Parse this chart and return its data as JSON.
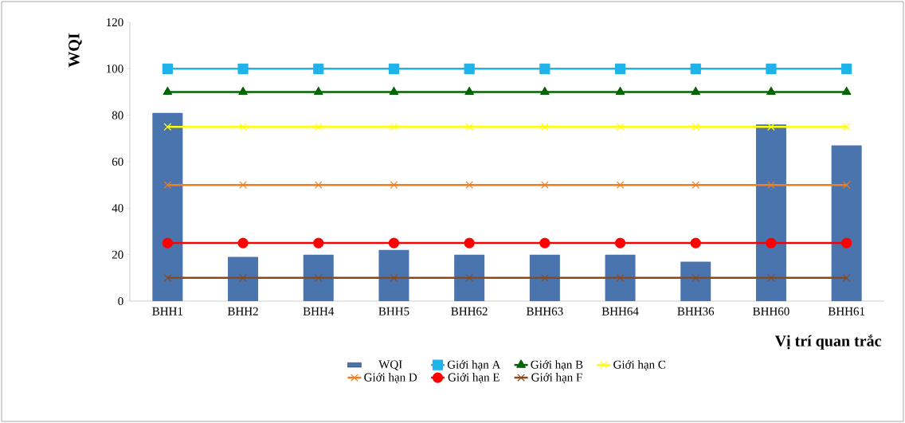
{
  "chart_data": {
    "type": "bar",
    "ylabel": "WQI",
    "xlabel": "Vị trí quan trắc",
    "categories": [
      "BHH1",
      "BHH2",
      "BHH4",
      "BHH5",
      "BHH62",
      "BHH63",
      "BHH64",
      "BHH36",
      "BHH60",
      "BHH61"
    ],
    "ylim": [
      0,
      120
    ],
    "yticks": [
      0,
      20,
      40,
      60,
      80,
      100,
      120
    ],
    "legend": "bottom",
    "grid": false,
    "series": [
      {
        "name": "WQI",
        "color": "#4a74ad",
        "values": [
          81,
          19,
          20,
          22,
          20,
          20,
          20,
          17,
          76,
          67
        ]
      },
      {
        "name": "Giới hạn A",
        "type": "line",
        "color": "#1fb3ea",
        "marker": "square",
        "values": [
          100,
          100,
          100,
          100,
          100,
          100,
          100,
          100,
          100,
          100
        ]
      },
      {
        "name": "Giới hạn B",
        "type": "line",
        "color": "#006400",
        "marker": "triangle",
        "values": [
          90,
          90,
          90,
          90,
          90,
          90,
          90,
          90,
          90,
          90
        ]
      },
      {
        "name": "Giới hạn C",
        "type": "line",
        "color": "#ffff00",
        "marker": "cross",
        "values": [
          75,
          75,
          75,
          75,
          75,
          75,
          75,
          75,
          75,
          75
        ]
      },
      {
        "name": "Giới hạn D",
        "type": "line",
        "color": "#f27d1a",
        "marker": "cross",
        "values": [
          50,
          50,
          50,
          50,
          50,
          50,
          50,
          50,
          50,
          50
        ]
      },
      {
        "name": "Giới hạn E",
        "type": "line",
        "color": "#ff0000",
        "marker": "circle",
        "values": [
          25,
          25,
          25,
          25,
          25,
          25,
          25,
          25,
          25,
          25
        ]
      },
      {
        "name": "Giới hạn F",
        "type": "line",
        "color": "#8b4a1c",
        "marker": "cross",
        "values": [
          10,
          10,
          10,
          10,
          10,
          10,
          10,
          10,
          10,
          10
        ]
      }
    ]
  }
}
